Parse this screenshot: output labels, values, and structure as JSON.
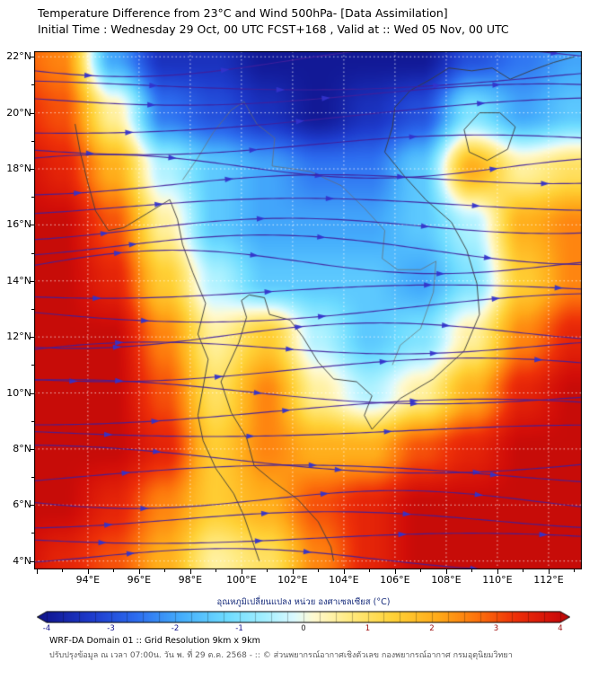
{
  "header": {
    "title": "Temperature Difference from 23°C and Wind 500hPa- [Data Assimilation]",
    "subtitle": "Initial Time : Wednesday 29 Oct, 00 UTC FCST+168 , Valid at ::  Wed 05 Nov, 00 UTC"
  },
  "footer": {
    "line1": "WRF-DA Domain 01 :: Grid Resolution 9km x 9km",
    "line2": "ปรับปรุงข้อมูล ณ เวลา 07:00น. วัน พ. ที่ 29 ต.ค. 2568 - :: © ส่วนพยากรณ์อากาศเชิงตัวเลข กองพยากรณ์อากาศ กรมอุตุนิยมวิทยา"
  },
  "chart_data": {
    "type": "heatmap",
    "title": "Temperature Difference from 23°C and Wind 500hPa- [Data Assimilation]",
    "map": {
      "lon_min": 91.9,
      "lon_max": 113.3,
      "lat_min": 3.7,
      "lat_max": 22.2
    },
    "x_tick_values": [
      94,
      96,
      98,
      100,
      102,
      104,
      106,
      108,
      110,
      112
    ],
    "x_tick_labels": [
      "94°E",
      "96°E",
      "98°E",
      "100°E",
      "102°E",
      "104°E",
      "106°E",
      "108°E",
      "110°E",
      "112°E"
    ],
    "y_tick_values": [
      22,
      20,
      18,
      16,
      14,
      12,
      10,
      8,
      6,
      4
    ],
    "y_tick_labels": [
      "22°N",
      "20°N",
      "18°N",
      "16°N",
      "14°N",
      "12°N",
      "10°N",
      "8°N",
      "6°N",
      "4°N"
    ],
    "gridline_interval_deg": 2,
    "temperature_anomaly_grid": {
      "units": "°C",
      "lons": [
        91,
        93,
        95,
        97,
        99,
        101,
        103,
        105,
        107,
        109,
        111,
        113
      ],
      "lats": [
        22,
        20,
        18,
        16,
        14,
        12,
        10,
        8,
        6,
        4
      ],
      "values": [
        [
          3.0,
          2.5,
          -2.0,
          -3.5,
          -3.5,
          -4.0,
          -4.0,
          -4.0,
          -4.0,
          -3.0,
          -2.5,
          -2.0
        ],
        [
          3.5,
          3.0,
          0.5,
          -2.5,
          -3.0,
          -3.5,
          -4.0,
          -3.5,
          -3.0,
          -1.0,
          -2.0,
          -1.5
        ],
        [
          4.0,
          3.5,
          2.0,
          -0.5,
          -1.5,
          -2.0,
          -2.5,
          -2.5,
          -1.5,
          2.0,
          0.5,
          1.0
        ],
        [
          4.0,
          4.0,
          3.0,
          0.5,
          -1.5,
          -2.0,
          -2.0,
          -2.0,
          -1.5,
          -0.5,
          2.0,
          2.5
        ],
        [
          4.0,
          4.0,
          3.5,
          1.5,
          -0.5,
          -1.5,
          -1.5,
          -1.5,
          -2.0,
          -1.0,
          1.5,
          2.5
        ],
        [
          4.0,
          4.0,
          4.0,
          2.5,
          0.5,
          1.5,
          -0.5,
          -1.5,
          -1.0,
          0.5,
          2.5,
          3.5
        ],
        [
          4.0,
          4.0,
          4.0,
          3.0,
          1.0,
          2.5,
          0.5,
          -0.5,
          0.5,
          2.0,
          3.5,
          4.0
        ],
        [
          4.0,
          4.0,
          4.0,
          3.5,
          1.5,
          2.5,
          2.0,
          2.0,
          3.0,
          3.5,
          4.0,
          4.0
        ],
        [
          4.0,
          4.0,
          3.5,
          2.5,
          1.5,
          2.0,
          3.0,
          3.5,
          4.0,
          4.0,
          4.0,
          4.0
        ],
        [
          4.0,
          3.5,
          3.0,
          2.0,
          0.5,
          1.0,
          2.5,
          3.5,
          4.0,
          4.0,
          4.0,
          4.0
        ]
      ]
    },
    "colormap_stops": [
      [
        -4.5,
        10,
        10,
        110
      ],
      [
        -4.0,
        18,
        25,
        150
      ],
      [
        -3.3,
        30,
        60,
        205
      ],
      [
        -2.6,
        45,
        110,
        240
      ],
      [
        -1.9,
        70,
        175,
        252
      ],
      [
        -1.2,
        110,
        220,
        255
      ],
      [
        -0.6,
        165,
        240,
        255
      ],
      [
        -0.15,
        220,
        250,
        255
      ],
      [
        0.15,
        255,
        250,
        210
      ],
      [
        0.7,
        255,
        235,
        130
      ],
      [
        1.4,
        255,
        210,
        55
      ],
      [
        2.1,
        255,
        170,
        25
      ],
      [
        2.7,
        253,
        115,
        12
      ],
      [
        3.3,
        238,
        48,
        8
      ],
      [
        3.9,
        210,
        14,
        8
      ],
      [
        4.5,
        145,
        0,
        10
      ]
    ],
    "wind": {
      "level": "500hPa",
      "style": "streamlines",
      "line_color": "#41209c",
      "arrow_color": "#3333cc",
      "line_count": 25
    },
    "colorbar": {
      "label": "อุณหภูมิเปลี่ยนแปลง หน่วย องศาเซลเซียส (°C)",
      "min": -4,
      "max": 4,
      "ticks": [
        -4,
        -3,
        -2,
        -1,
        0,
        1,
        2,
        3,
        4
      ],
      "negative_tick_color": "#14148c",
      "positive_tick_color": "#a01010",
      "zero_tick_color": "#222222"
    },
    "map_outlines": {
      "coast_east": [
        [
          106.6,
          20.8
        ],
        [
          106.0,
          20.2
        ],
        [
          105.9,
          19.5
        ],
        [
          105.6,
          18.6
        ],
        [
          106.4,
          17.7
        ],
        [
          107.2,
          16.9
        ],
        [
          108.2,
          16.1
        ],
        [
          108.8,
          15.1
        ],
        [
          109.2,
          13.9
        ],
        [
          109.3,
          12.8
        ],
        [
          108.7,
          11.5
        ],
        [
          107.5,
          10.5
        ],
        [
          106.2,
          9.8
        ],
        [
          105.1,
          8.7
        ],
        [
          104.8,
          9.2
        ],
        [
          105.1,
          9.9
        ],
        [
          104.5,
          10.4
        ],
        [
          103.6,
          10.5
        ],
        [
          103.0,
          11.1
        ],
        [
          102.4,
          12.0
        ],
        [
          101.9,
          12.6
        ],
        [
          101.1,
          12.8
        ],
        [
          100.9,
          13.4
        ],
        [
          100.3,
          13.5
        ],
        [
          100.0,
          13.3
        ],
        [
          100.2,
          12.7
        ],
        [
          99.9,
          11.8
        ],
        [
          99.2,
          10.4
        ],
        [
          99.6,
          9.3
        ],
        [
          100.2,
          8.4
        ],
        [
          100.5,
          7.4
        ],
        [
          101.3,
          6.8
        ],
        [
          102.2,
          6.2
        ],
        [
          103.0,
          5.4
        ],
        [
          103.5,
          4.5
        ],
        [
          103.6,
          4.0
        ]
      ],
      "coast_west": [
        [
          100.7,
          4.0
        ],
        [
          100.4,
          4.8
        ],
        [
          100.1,
          5.6
        ],
        [
          99.7,
          6.4
        ],
        [
          99.0,
          7.3
        ],
        [
          98.5,
          8.3
        ],
        [
          98.3,
          9.2
        ],
        [
          98.5,
          10.2
        ],
        [
          98.7,
          11.2
        ],
        [
          98.3,
          12.1
        ],
        [
          98.6,
          13.2
        ],
        [
          98.1,
          14.3
        ],
        [
          97.7,
          15.3
        ],
        [
          97.5,
          16.2
        ],
        [
          97.2,
          16.9
        ],
        [
          96.3,
          16.4
        ],
        [
          95.4,
          15.9
        ],
        [
          94.8,
          15.8
        ],
        [
          94.3,
          16.5
        ],
        [
          94.0,
          17.5
        ],
        [
          93.7,
          18.6
        ],
        [
          93.5,
          19.6
        ]
      ],
      "hainan": [
        [
          108.7,
          19.4
        ],
        [
          109.3,
          20.0
        ],
        [
          110.1,
          20.0
        ],
        [
          110.7,
          19.5
        ],
        [
          110.4,
          18.7
        ],
        [
          109.6,
          18.3
        ],
        [
          108.9,
          18.6
        ],
        [
          108.7,
          19.4
        ]
      ],
      "china_coast": [
        [
          106.6,
          20.8
        ],
        [
          107.4,
          21.2
        ],
        [
          108.1,
          21.6
        ],
        [
          109.0,
          21.5
        ],
        [
          109.8,
          21.6
        ],
        [
          110.5,
          21.2
        ],
        [
          111.3,
          21.5
        ],
        [
          112.2,
          21.8
        ],
        [
          113.0,
          22.0
        ]
      ],
      "border_mekong": [
        [
          100.1,
          20.4
        ],
        [
          100.6,
          19.6
        ],
        [
          101.3,
          19.1
        ],
        [
          101.2,
          18.1
        ],
        [
          102.0,
          18.0
        ],
        [
          102.7,
          17.9
        ],
        [
          103.9,
          17.4
        ],
        [
          104.8,
          16.6
        ],
        [
          105.6,
          15.8
        ],
        [
          105.5,
          14.8
        ],
        [
          106.1,
          14.4
        ],
        [
          107.0,
          14.4
        ],
        [
          107.6,
          14.7
        ]
      ],
      "border_north": [
        [
          97.7,
          17.6
        ],
        [
          98.3,
          18.4
        ],
        [
          98.9,
          19.3
        ],
        [
          99.6,
          20.1
        ],
        [
          100.1,
          20.4
        ]
      ],
      "border_east": [
        [
          107.6,
          14.7
        ],
        [
          107.5,
          13.6
        ],
        [
          107.0,
          12.3
        ],
        [
          106.2,
          11.7
        ],
        [
          105.9,
          11.0
        ]
      ]
    }
  }
}
